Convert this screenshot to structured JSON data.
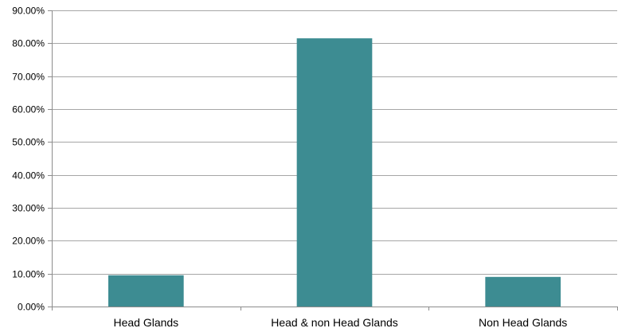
{
  "chart_data": {
    "type": "bar",
    "categories": [
      "Head Glands",
      "Head & non Head Glands",
      "Non Head Glands"
    ],
    "values": [
      9.5,
      81.5,
      9.0
    ],
    "title": "",
    "xlabel": "",
    "ylabel": "",
    "ylim": [
      0,
      90
    ],
    "y_ticks": [
      0,
      10,
      20,
      30,
      40,
      50,
      60,
      70,
      80,
      90
    ],
    "y_tick_labels": [
      "0.00%",
      "10.00%",
      "20.00%",
      "30.00%",
      "40.00%",
      "50.00%",
      "60.00%",
      "70.00%",
      "80.00%",
      "90.00%"
    ],
    "grid": true,
    "legend": "none",
    "bar_color": "#3d8c92",
    "grid_color": "#a6a6a6",
    "axis_color": "#8c8c8c"
  }
}
